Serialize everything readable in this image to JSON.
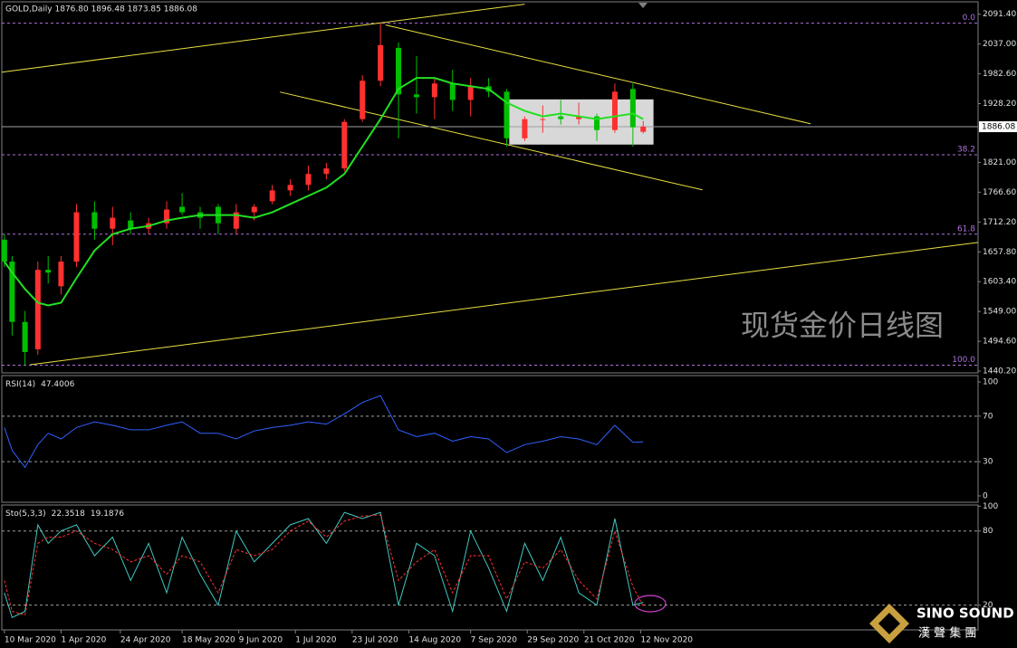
{
  "chart_data": [
    {
      "type": "candlestick",
      "title": "GOLD,Daily  1876.80 1896.48 1873.85 1886.08",
      "x": [
        "10 Mar 2020",
        "13 Mar 2020",
        "18 Mar 2020",
        "23 Mar 2020",
        "27 Mar 2020",
        "1 Apr 2020",
        "7 Apr 2020",
        "14 Apr 2020",
        "21 Apr 2020",
        "28 Apr 2020",
        "5 May 2020",
        "12 May 2020",
        "18 May 2020",
        "25 May 2020",
        "1 Jun 2020",
        "8 Jun 2020",
        "15 Jun 2020",
        "22 Jun 2020",
        "29 Jun 2020",
        "6 Jul 2020",
        "13 Jul 2020",
        "20 Jul 2020",
        "27 Jul 2020",
        "3 Aug 2020",
        "10 Aug 2020",
        "17 Aug 2020",
        "24 Aug 2020",
        "31 Aug 2020",
        "7 Sep 2020",
        "14 Sep 2020",
        "21 Sep 2020",
        "28 Sep 2020",
        "5 Oct 2020",
        "12 Oct 2020",
        "19 Oct 2020",
        "26 Oct 2020",
        "2 Nov 2020",
        "9 Nov 2020",
        "13 Nov 2020"
      ],
      "open": [
        1680,
        1640,
        1530,
        1480,
        1625,
        1595,
        1640,
        1730,
        1700,
        1715,
        1700,
        1710,
        1740,
        1730,
        1740,
        1700,
        1730,
        1750,
        1770,
        1780,
        1800,
        1810,
        1900,
        1970,
        2030,
        1945,
        1940,
        1965,
        1935,
        1960,
        1950,
        1865,
        1900,
        1905,
        1900,
        1905,
        1880,
        1955,
        1876.8
      ],
      "high": [
        1690,
        1650,
        1550,
        1640,
        1650,
        1650,
        1745,
        1750,
        1740,
        1730,
        1720,
        1750,
        1765,
        1740,
        1745,
        1745,
        1745,
        1780,
        1790,
        1815,
        1820,
        1900,
        1980,
        2075,
        2040,
        2015,
        1975,
        1990,
        1975,
        1975,
        1955,
        1905,
        1925,
        1935,
        1930,
        1910,
        1965,
        1965,
        1896.48
      ],
      "low": [
        1630,
        1505,
        1451,
        1470,
        1600,
        1580,
        1630,
        1680,
        1670,
        1690,
        1690,
        1700,
        1725,
        1700,
        1690,
        1690,
        1715,
        1745,
        1760,
        1770,
        1790,
        1805,
        1895,
        1960,
        1865,
        1910,
        1900,
        1915,
        1905,
        1940,
        1850,
        1860,
        1875,
        1890,
        1890,
        1860,
        1875,
        1850,
        1873.85
      ],
      "close": [
        1640,
        1530,
        1475,
        1625,
        1620,
        1640,
        1730,
        1700,
        1720,
        1700,
        1710,
        1735,
        1730,
        1720,
        1710,
        1730,
        1740,
        1770,
        1780,
        1800,
        1810,
        1895,
        1970,
        2035,
        1945,
        1940,
        1965,
        1935,
        1960,
        1950,
        1865,
        1900,
        1900,
        1900,
        1905,
        1880,
        1950,
        1885,
        1886.08
      ],
      "up_color": "#ff3030",
      "down_color": "#00c000",
      "ma": {
        "color": "#22e022",
        "values": [
          1640,
          1620,
          1590,
          1565,
          1560,
          1565,
          1610,
          1660,
          1690,
          1700,
          1705,
          1715,
          1720,
          1725,
          1725,
          1725,
          1720,
          1730,
          1745,
          1760,
          1775,
          1800,
          1850,
          1900,
          1955,
          1975,
          1975,
          1965,
          1960,
          1955,
          1930,
          1915,
          1905,
          1910,
          1905,
          1900,
          1905,
          1910,
          1900
        ]
      },
      "xlim": [
        "9 Mar 2020",
        "23 Mar 2021"
      ],
      "xticks": [
        "10 Mar 2020",
        "1 Apr 2020",
        "24 Apr 2020",
        "18 May 2020",
        "9 Jun 2020",
        "1 Jul 2020",
        "23 Jul 2020",
        "14 Aug 2020",
        "7 Sep 2020",
        "29 Sep 2020",
        "21 Oct 2020",
        "12 Nov 2020"
      ],
      "ylim": [
        1437,
        2114
      ],
      "yticks": [
        {
          "value": 2091.4,
          "label": "2091.40"
        },
        {
          "value": 2037,
          "label": "2037.00"
        },
        {
          "value": 1982.6,
          "label": "1982.60"
        },
        {
          "value": 1928.2,
          "label": "1928.20"
        },
        {
          "value": 1821,
          "label": "1821.00"
        },
        {
          "value": 1766.6,
          "label": "1766.60"
        },
        {
          "value": 1712.2,
          "label": "1712.20"
        },
        {
          "value": 1657.8,
          "label": "1657.80"
        },
        {
          "value": 1603.4,
          "label": "1603.40"
        },
        {
          "value": 1549,
          "label": "1549.00"
        },
        {
          "value": 1494.6,
          "label": "1494.60"
        },
        {
          "value": 1440.2,
          "label": "1440.20"
        }
      ],
      "last_price": {
        "value": 1886.08,
        "label": "1886.08"
      },
      "fib_color": "#b070e0",
      "fib_levels": [
        {
          "label": "0.0",
          "price": 2075
        },
        {
          "label": "38.2",
          "price": 1835
        },
        {
          "label": "61.8",
          "price": 1690
        },
        {
          "label": "100.0",
          "price": 1451
        }
      ],
      "trend_color": "#e8e040",
      "trendlines": [
        {
          "x": [
            "9 Mar 2020",
            "28 Sep 2020"
          ],
          "y": [
            1985.7,
            2109.7
          ]
        },
        {
          "x": [
            "20 Mar 2020",
            "23 Mar 2021"
          ],
          "y": [
            1451.9,
            1675
          ]
        },
        {
          "x": [
            "5 Aug 2020",
            "17 Jan 2021"
          ],
          "y": [
            2071.7,
            1891.5
          ]
        },
        {
          "x": [
            "25 Jun 2020",
            "6 Dec 2020"
          ],
          "y": [
            1949.4,
            1770.9
          ]
        }
      ],
      "rectangle": {
        "x": [
          "22 Sep 2020",
          "17 Nov 2020"
        ],
        "y": [
          1936,
          1853.5
        ]
      },
      "annotation": "现货金价日线图"
    },
    {
      "type": "line",
      "title": "RSI(14)",
      "series": [
        {
          "color": "#3060ff",
          "values": [
            60,
            40,
            25,
            45,
            55,
            50,
            60,
            65,
            62,
            58,
            58,
            62,
            65,
            55,
            55,
            50,
            57,
            60,
            62,
            65,
            63,
            72,
            82,
            88,
            58,
            52,
            55,
            48,
            52,
            50,
            38,
            45,
            48,
            52,
            50,
            45,
            62,
            47,
            47.4006
          ]
        }
      ],
      "ylim": [
        -5.6,
        105.6
      ],
      "yticks": [
        100,
        70,
        30,
        0
      ],
      "levels": [
        70,
        30
      ]
    },
    {
      "type": "line",
      "title": "Sto(5,3,3)",
      "series": [
        {
          "color": "#40c8c0",
          "values": [
            30,
            10,
            15,
            85,
            70,
            80,
            85,
            60,
            75,
            40,
            70,
            30,
            75,
            45,
            20,
            80,
            55,
            70,
            85,
            90,
            70,
            95,
            90,
            95,
            20,
            70,
            60,
            15,
            80,
            50,
            15,
            70,
            40,
            75,
            30,
            20,
            90,
            20,
            22.3518
          ]
        },
        {
          "color": "#ff3030",
          "dashed": true,
          "values": [
            40,
            15,
            12,
            70,
            75,
            75,
            80,
            70,
            65,
            55,
            60,
            45,
            60,
            55,
            30,
            65,
            60,
            65,
            80,
            88,
            75,
            88,
            92,
            93,
            40,
            55,
            65,
            30,
            60,
            60,
            25,
            55,
            50,
            65,
            40,
            25,
            80,
            35,
            19.1876
          ]
        }
      ],
      "ylim": [
        0,
        101
      ],
      "yticks": [
        100,
        80,
        20
      ],
      "levels": [
        80,
        20
      ]
    }
  ],
  "logo": {
    "name": "SINO SOUND",
    "subtitle": "漢 聲 集 團"
  }
}
